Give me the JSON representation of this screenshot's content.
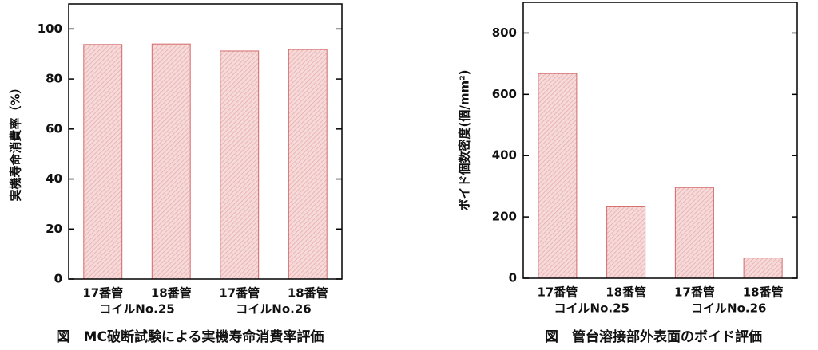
{
  "chart_data": [
    {
      "type": "bar",
      "y_label": "実機寿命消費率（%）",
      "categories": [
        "17番管",
        "18番管",
        "17番管",
        "18番管"
      ],
      "group_labels": [
        "コイルNo.25",
        "コイルNo.26"
      ],
      "values": [
        93.8,
        94,
        91.2,
        91.8
      ],
      "color": "#d46a6a",
      "ylim": [
        0,
        110
      ],
      "yticks": [
        0,
        20,
        40,
        60,
        80,
        100
      ],
      "caption": "図　MC破断試験による実機寿命消費率評価"
    },
    {
      "type": "bar",
      "y_label": "ボイド個数密度(個/mm²)",
      "categories": [
        "17番管",
        "18番管",
        "17番管",
        "18番管"
      ],
      "group_labels": [
        "コイルNo.25",
        "コイルNo.26"
      ],
      "values": [
        668,
        233,
        296,
        66
      ],
      "color": "#d46a6a",
      "ylim": [
        0,
        900
      ],
      "yticks": [
        0,
        200,
        400,
        600,
        800
      ],
      "caption": "図　管台溶接部外表面のボイド評価"
    }
  ]
}
